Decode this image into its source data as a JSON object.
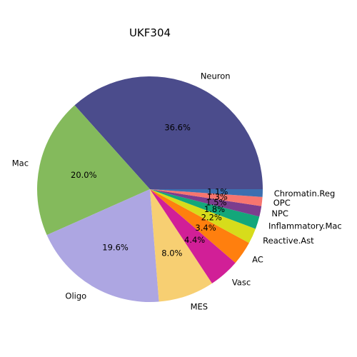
{
  "chart_data": {
    "type": "pie",
    "title": "UKF304",
    "start_angle_deg": 0,
    "direction": "counterclockwise",
    "slices": [
      {
        "label": "Neuron",
        "value": 36.6,
        "pct_label": "36.6%",
        "color": "#4b4c8c"
      },
      {
        "label": "Mac",
        "value": 20.0,
        "pct_label": "20.0%",
        "color": "#84ba5c"
      },
      {
        "label": "Oligo",
        "value": 19.6,
        "pct_label": "19.6%",
        "color": "#ada6e2"
      },
      {
        "label": "MES",
        "value": 8.0,
        "pct_label": "8.0%",
        "color": "#f7cf72"
      },
      {
        "label": "Vasc",
        "value": 4.4,
        "pct_label": "4.4%",
        "color": "#d11f97"
      },
      {
        "label": "AC",
        "value": 3.4,
        "pct_label": "3.4%",
        "color": "#ff7f0e"
      },
      {
        "label": "Reactive.Ast",
        "value": 2.2,
        "pct_label": "2.2%",
        "color": "#d7dc1b"
      },
      {
        "label": "Inflammatory.Mac",
        "value": 1.8,
        "pct_label": "1.8%",
        "color": "#13a77a"
      },
      {
        "label": "NPC",
        "value": 1.5,
        "pct_label": "1.5%",
        "color": "#7c3d8e"
      },
      {
        "label": "OPC",
        "value": 1.3,
        "pct_label": "1.3%",
        "color": "#f7756f"
      },
      {
        "label": "Chromatin.Reg",
        "value": 1.1,
        "pct_label": "1.1%",
        "color": "#3d6fb0"
      }
    ]
  }
}
